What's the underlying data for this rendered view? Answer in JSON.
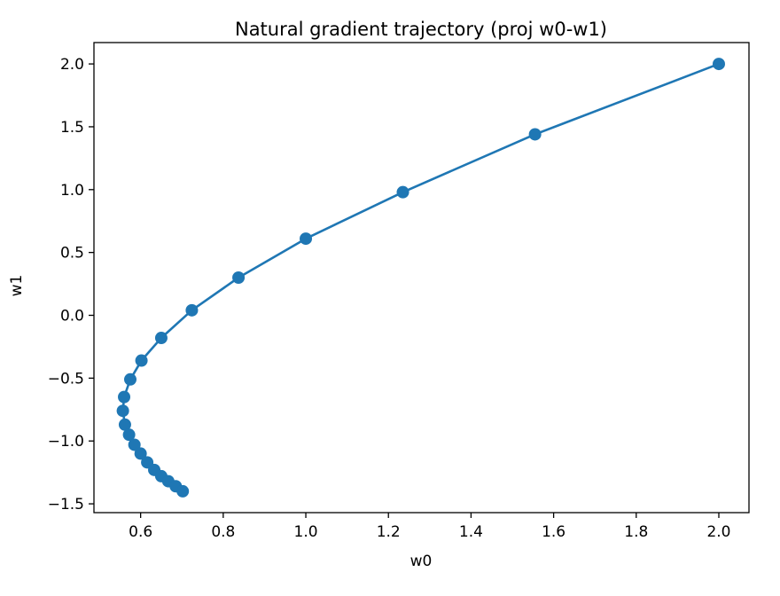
{
  "chart_data": {
    "type": "line",
    "title": "Natural gradient trajectory (proj w0-w1)",
    "xlabel": "w0",
    "ylabel": "w1",
    "xlim": [
      0.487,
      2.073
    ],
    "ylim": [
      -1.57,
      2.17
    ],
    "xticks": [
      0.6,
      0.8,
      1.0,
      1.2,
      1.4,
      1.6,
      1.8,
      2.0
    ],
    "xtick_labels": [
      "0.6",
      "0.8",
      "1.0",
      "1.2",
      "1.4",
      "1.6",
      "1.8",
      "2.0"
    ],
    "yticks": [
      -1.5,
      -1.0,
      -0.5,
      0.0,
      0.5,
      1.0,
      1.5,
      2.0
    ],
    "ytick_labels": [
      "−1.5",
      "−1.0",
      "−0.5",
      "0.0",
      "0.5",
      "1.0",
      "1.5",
      "2.0"
    ],
    "grid": false,
    "color": "#1f77b4",
    "markers": true,
    "series": [
      {
        "x": [
          2.0,
          1.555,
          1.235,
          1.0,
          0.837,
          0.724,
          0.65,
          0.602,
          0.575,
          0.56,
          0.557,
          0.562,
          0.572,
          0.585,
          0.6,
          0.616,
          0.633,
          0.65,
          0.667,
          0.685,
          0.702
        ],
        "y": [
          2.0,
          1.44,
          0.98,
          0.61,
          0.3,
          0.04,
          -0.18,
          -0.36,
          -0.51,
          -0.65,
          -0.76,
          -0.87,
          -0.95,
          -1.03,
          -1.1,
          -1.17,
          -1.23,
          -1.28,
          -1.32,
          -1.36,
          -1.4
        ]
      }
    ]
  }
}
